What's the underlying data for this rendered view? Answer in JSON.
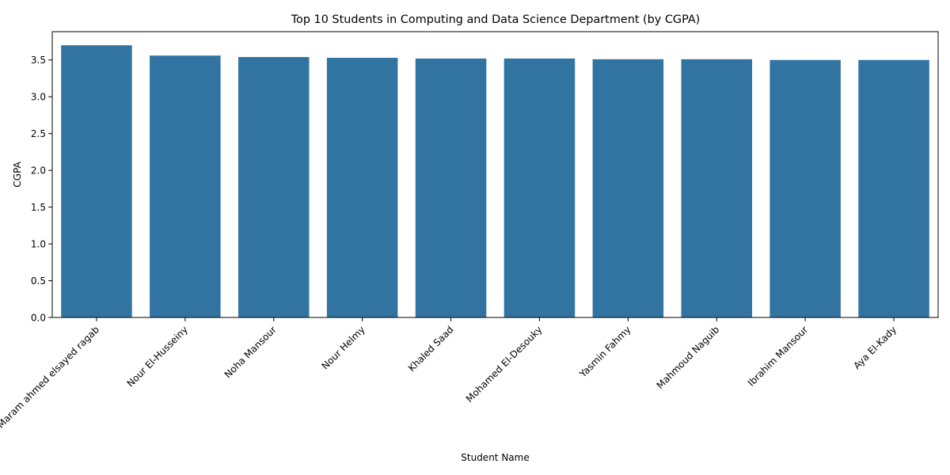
{
  "chart_data": {
    "type": "bar",
    "title": "Top 10 Students in Computing and Data Science Department (by CGPA)",
    "xlabel": "Student Name",
    "ylabel": "CGPA",
    "categories": [
      "Maram ahmed elsayed ragab",
      "Nour El-Husseiny",
      "Noha Mansour",
      "Nour Helmy",
      "Khaled Saad",
      "Mohamed El-Desouky",
      "Yasmin Fahmy",
      "Mahmoud Naguib",
      "Ibrahim Mansour",
      "Aya El-Kady"
    ],
    "values": [
      3.7,
      3.56,
      3.54,
      3.53,
      3.52,
      3.52,
      3.51,
      3.51,
      3.5,
      3.5
    ],
    "ylim": [
      0,
      3.885
    ],
    "yticks": [
      0.0,
      0.5,
      1.0,
      1.5,
      2.0,
      2.5,
      3.0,
      3.5
    ],
    "ytick_labels": [
      "0.0",
      "0.5",
      "1.0",
      "1.5",
      "2.0",
      "2.5",
      "3.0",
      "3.5"
    ],
    "bar_color": "#3274a1",
    "grid": false,
    "legend": "none"
  }
}
